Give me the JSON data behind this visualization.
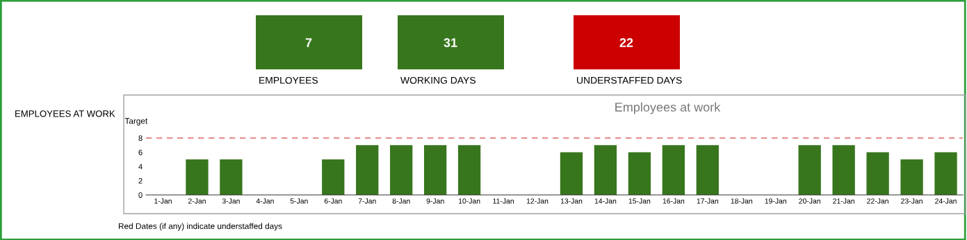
{
  "chart_data": [
    {
      "type": "other",
      "categories": [
        "EMPLOYEES",
        "WORKING DAYS",
        "UNDERSTAFFED DAYS"
      ],
      "values": [
        7,
        31,
        22
      ],
      "colors": [
        "#38761d",
        "#38761d",
        "#cc0000"
      ],
      "data_labels": true
    },
    {
      "type": "bar",
      "title": "Employees at work",
      "ylabel": "EMPLOYEES AT WORK",
      "categories": [
        "1-Jan",
        "2-Jan",
        "3-Jan",
        "4-Jan",
        "5-Jan",
        "6-Jan",
        "7-Jan",
        "8-Jan",
        "9-Jan",
        "10-Jan",
        "11-Jan",
        "12-Jan",
        "13-Jan",
        "14-Jan",
        "15-Jan",
        "16-Jan",
        "17-Jan",
        "18-Jan",
        "19-Jan",
        "20-Jan",
        "21-Jan",
        "22-Jan",
        "23-Jan",
        "24-Jan"
      ],
      "values": [
        0,
        5,
        5,
        0,
        0,
        5,
        7,
        7,
        7,
        7,
        0,
        0,
        6,
        7,
        6,
        7,
        7,
        0,
        0,
        7,
        7,
        6,
        5,
        6
      ],
      "color": "#38761d",
      "ylim": [
        0,
        8
      ],
      "yticks": [
        0,
        2,
        4,
        6,
        8
      ],
      "grid": false,
      "ref_lines": [
        {
          "axis": "y",
          "value": 8,
          "label": "Target",
          "color": "#e06666",
          "line_style": "dashed"
        }
      ],
      "annotations": [
        "Red Dates (if any) indicate understaffed days"
      ]
    }
  ]
}
